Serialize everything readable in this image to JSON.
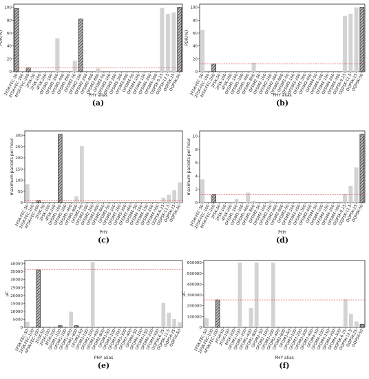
{
  "chart_data": [
    {
      "type": "bar",
      "caption": "(a)",
      "xlabel": "PHY alias",
      "ylabel": "PDR(%)",
      "ylim": [
        0,
        105
      ],
      "yticks": [
        "0",
        "20",
        "40",
        "60",
        "80",
        "100"
      ],
      "threshold": 6,
      "categories": [
        "2FSK-FEC-50",
        "2FSK-FEC-100",
        "4FSK-FEC-200",
        "2FSK-50",
        "2FSK-100",
        "4FSK-200",
        "OFDM1-100",
        "OFDM1-200",
        "OFDM1-400",
        "OFDM1-800",
        "OFDM2-50",
        "OFDM2-100",
        "OFDM2-200",
        "OFDM2-400",
        "OFDM2-800",
        "OFDM3-50",
        "OFDM3-100",
        "OFDM3-200",
        "OFDM3-300",
        "OFDM3-400",
        "OFDM4-50",
        "OFDM4-100",
        "OFDM4-150",
        "OFDM4-200",
        "OFDM4-300",
        "OQPSK-6.25",
        "OQPSK-12.5",
        "OQPSK-25",
        "OQPSK-50"
      ],
      "values": [
        98,
        0,
        6,
        0,
        0,
        0,
        0,
        52,
        0,
        0,
        17,
        82,
        0,
        0,
        5,
        0,
        0,
        0,
        0,
        0,
        0,
        0,
        0,
        0,
        0,
        99,
        90,
        92,
        100
      ],
      "highlight": [
        0,
        2,
        11,
        28
      ]
    },
    {
      "type": "bar",
      "caption": "(b)",
      "xlabel": "PHY alias",
      "ylabel": "PDR(%)",
      "ylim": [
        0,
        105
      ],
      "yticks": [
        "0",
        "20",
        "40",
        "60",
        "80",
        "100"
      ],
      "threshold": 12,
      "categories": [
        "2FSK-FEC-50",
        "2FSK-FEC-100",
        "4FSK-FEC-200",
        "2FSK-50",
        "2FSK-100",
        "4FSK-200",
        "OFDM1-100",
        "OFDM1-200",
        "OFDM1-400",
        "OFDM1-800",
        "OFDM2-50",
        "OFDM2-100",
        "OFDM2-200",
        "OFDM2-400",
        "OFDM2-800",
        "OFDM3-50",
        "OFDM3-100",
        "OFDM3-200",
        "OFDM3-300",
        "OFDM3-400",
        "OFDM4-50",
        "OFDM4-100",
        "OFDM4-150",
        "OFDM4-200",
        "OFDM4-300",
        "OQPSK-6.25",
        "OQPSK-12.5",
        "OQPSK-25",
        "OQPSK-50"
      ],
      "values": [
        65,
        0,
        12,
        0,
        0,
        0,
        0,
        0,
        0,
        14,
        0,
        0,
        0,
        0,
        0,
        0,
        0,
        0,
        0,
        0,
        0,
        0,
        0,
        0,
        0,
        87,
        90,
        100,
        100
      ],
      "highlight": [
        2,
        28
      ]
    },
    {
      "type": "bar",
      "caption": "(c)",
      "xlabel": "PHY",
      "ylabel": "maximum packets per hour",
      "ylim": [
        0,
        320
      ],
      "yticks": [
        "0",
        "50",
        "100",
        "150",
        "200",
        "250",
        "300"
      ],
      "threshold": 10,
      "categories": [
        "2FSK-FEC-50",
        "2FSK-FEC-100",
        "4FSK-FEC-200",
        "2FSK-50",
        "2FSK-100",
        "4FSK-200",
        "OFDM1-100",
        "OFDM1-200",
        "OFDM1-400",
        "OFDM1-800",
        "OFDM2-50",
        "OFDM2-100",
        "OFDM2-200",
        "OFDM2-400",
        "OFDM2-800",
        "OFDM3-50",
        "OFDM3-100",
        "OFDM3-200",
        "OFDM3-300",
        "OFDM3-400",
        "OFDM4-50",
        "OFDM4-100",
        "OFDM4-150",
        "OFDM4-200",
        "OFDM4-300",
        "OQPSK-6.25",
        "OQPSK-12.5",
        "OQPSK-25",
        "OQPSK-50"
      ],
      "values": [
        82,
        0,
        8,
        0,
        0,
        0,
        305,
        0,
        0,
        28,
        252,
        0,
        0,
        5,
        0,
        0,
        0,
        0,
        0,
        0,
        0,
        0,
        0,
        0,
        0,
        22,
        35,
        55,
        90
      ],
      "highlight": [
        2,
        6
      ]
    },
    {
      "type": "bar",
      "caption": "(d)",
      "xlabel": "PHY",
      "ylabel": "maximum packets per hour",
      "ylim": [
        0,
        10.8
      ],
      "yticks": [
        "0",
        "2",
        "4",
        "6",
        "8",
        "10"
      ],
      "threshold": 1.2,
      "categories": [
        "2FSK-FEC-50",
        "2FSK-FEC-100",
        "4FSK-FEC-200",
        "2FSK-50",
        "2FSK-100",
        "4FSK-200",
        "OFDM1-100",
        "OFDM1-200",
        "OFDM1-400",
        "OFDM1-800",
        "OFDM2-50",
        "OFDM2-100",
        "OFDM2-200",
        "OFDM2-400",
        "OFDM2-800",
        "OFDM3-50",
        "OFDM3-100",
        "OFDM3-200",
        "OFDM3-300",
        "OFDM3-400",
        "OFDM4-50",
        "OFDM4-100",
        "OFDM4-150",
        "OFDM4-200",
        "OFDM4-300",
        "OQPSK-6.25",
        "OQPSK-12.5",
        "OQPSK-25",
        "OQPSK-50"
      ],
      "values": [
        3.5,
        0,
        1.2,
        0,
        0,
        0,
        0.5,
        0,
        1.5,
        0.2,
        0,
        0,
        0.3,
        0,
        0,
        0,
        0,
        0,
        0,
        0,
        0,
        0,
        0,
        0,
        0,
        1.3,
        2.5,
        5.3,
        10.3
      ],
      "highlight": [
        2,
        28
      ]
    },
    {
      "type": "bar",
      "caption": "(e)",
      "xlabel": "PHY alias",
      "ylabel": "μC",
      "ylim": [
        0,
        42000
      ],
      "yticks": [
        "0",
        "5000",
        "10000",
        "15000",
        "20000",
        "25000",
        "30000",
        "35000",
        "40000"
      ],
      "threshold": 36200,
      "categories": [
        "2FSK-FEC-50",
        "2FSK-FEC-100",
        "4FSK-FEC-200",
        "2FSK-50",
        "2FSK-100",
        "4FSK-200",
        "OFDM1-100",
        "OFDM1-200",
        "OFDM1-400",
        "OFDM1-800",
        "OFDM2-50",
        "OFDM2-100",
        "OFDM2-200",
        "OFDM2-400",
        "OFDM2-800",
        "OFDM3-50",
        "OFDM3-100",
        "OFDM3-200",
        "OFDM3-300",
        "OFDM3-400",
        "OFDM4-50",
        "OFDM4-100",
        "OFDM4-150",
        "OFDM4-200",
        "OFDM4-300",
        "OQPSK-6.25",
        "OQPSK-12.5",
        "OQPSK-25",
        "OQPSK-50"
      ],
      "values": [
        3500,
        0,
        36000,
        0,
        0,
        0,
        1000,
        0,
        9800,
        1000,
        0,
        0,
        41000,
        0,
        0,
        0,
        0,
        0,
        0,
        0,
        0,
        0,
        0,
        0,
        0,
        15300,
        9200,
        5200,
        3200
      ],
      "highlight": [
        2,
        6,
        9
      ]
    },
    {
      "type": "bar",
      "caption": "(f)",
      "xlabel": "PHY alias",
      "ylabel": "μC",
      "ylim": [
        0,
        620000
      ],
      "yticks": [
        "0",
        "100000",
        "200000",
        "300000",
        "400000",
        "500000",
        "600000"
      ],
      "threshold": 255000,
      "categories": [
        "2FSK-FEC-50",
        "2FSK-FEC-100",
        "4FSK-FEC-200",
        "2FSK-50",
        "2FSK-100",
        "4FSK-200",
        "OFDM1-100",
        "OFDM1-200",
        "OFDM1-400",
        "OFDM1-800",
        "OFDM2-50",
        "OFDM2-100",
        "OFDM2-200",
        "OFDM2-400",
        "OFDM2-800",
        "OFDM3-50",
        "OFDM3-100",
        "OFDM3-200",
        "OFDM3-300",
        "OFDM3-400",
        "OFDM4-50",
        "OFDM4-100",
        "OFDM4-150",
        "OFDM4-200",
        "OFDM4-300",
        "OQPSK-6.25",
        "OQPSK-12.5",
        "OQPSK-25",
        "OQPSK-50"
      ],
      "values": [
        85000,
        0,
        255000,
        0,
        0,
        0,
        600000,
        0,
        180000,
        600000,
        0,
        0,
        600000,
        0,
        0,
        0,
        0,
        0,
        0,
        0,
        0,
        0,
        0,
        0,
        0,
        260000,
        125000,
        55000,
        30000
      ],
      "highlight": [
        2,
        28
      ]
    }
  ]
}
